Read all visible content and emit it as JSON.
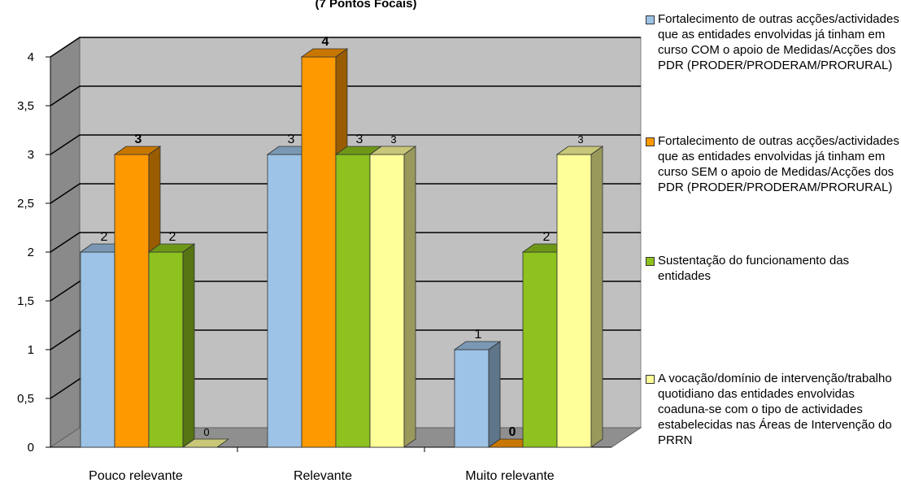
{
  "chart_data": {
    "type": "bar",
    "title": "(7 Pontos Focais)",
    "categories": [
      "Pouco relevante",
      "Relevante",
      "Muito relevante"
    ],
    "series": [
      {
        "name": "Fortalecimento de outras acções/actividades que as entidades envolvidas já tinham em curso COM o apoio de Medidas/Acções dos PDR (PRODER/PRODERAM/PRORURAL)",
        "color": "#9DC3E6",
        "values": [
          2,
          3,
          1
        ],
        "labels": [
          "2",
          "3",
          "1"
        ]
      },
      {
        "name": "Fortalecimento de outras acções/actividades que as entidades envolvidas já tinham em curso SEM o apoio de Medidas/Acções dos PDR (PRODER/PRODERAM/PRORURAL)",
        "color": "#FF9900",
        "values": [
          3,
          4,
          0
        ],
        "labels": [
          "3",
          "4",
          "0"
        ]
      },
      {
        "name": "Sustentação do funcionamento das entidades",
        "color": "#8DC21F",
        "values": [
          2,
          3,
          2
        ],
        "labels": [
          "2",
          "3",
          "2"
        ]
      },
      {
        "name": "A vocação/domínio de intervenção/trabalho quotidiano das entidades envolvidas coaduna-se com o tipo de actividades estabelecidas nas Áreas de Intervenção do PRRN",
        "color": "#FFFF99",
        "values": [
          0,
          3,
          3
        ],
        "labels": [
          "0",
          "3",
          "3"
        ]
      }
    ],
    "yticks": [
      "0",
      "0,5",
      "1",
      "1,5",
      "2",
      "2,5",
      "3",
      "3,5",
      "4"
    ],
    "ylim": [
      0,
      4
    ],
    "grid": true,
    "legend": "right"
  }
}
